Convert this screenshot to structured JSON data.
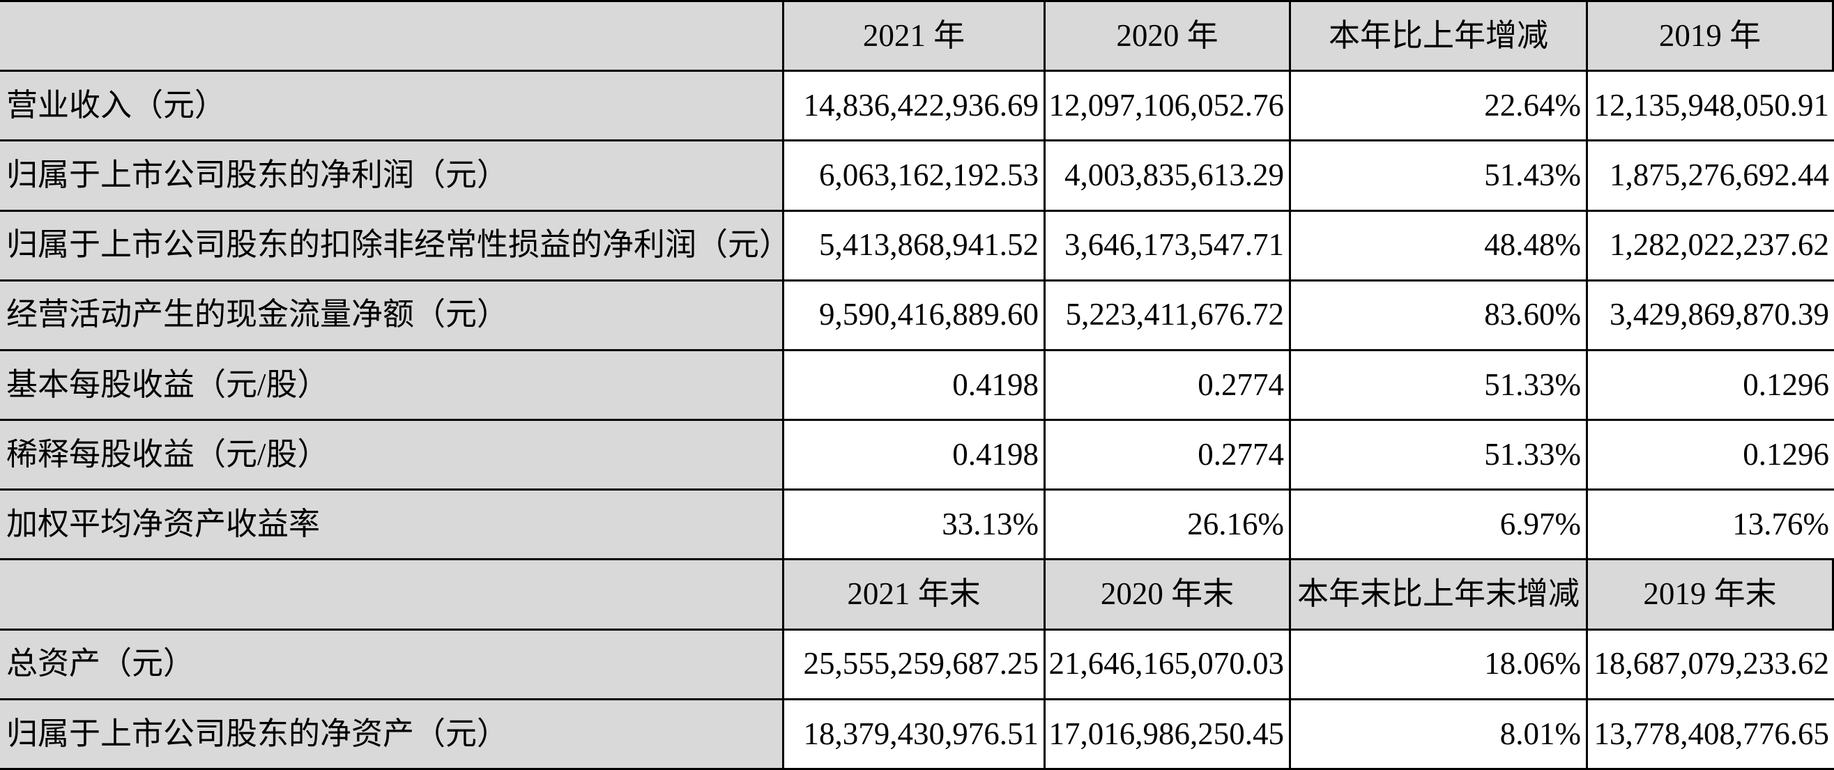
{
  "colors": {
    "header_bg": "#d9d9d9",
    "label_bg": "#d9d9d9",
    "cell_bg": "#ffffff",
    "border": "#000000",
    "text": "#000000",
    "page_bg": "#ffffff"
  },
  "table": {
    "header1": [
      "",
      "2021 年",
      "2020 年",
      "本年比上年增减",
      "2019 年"
    ],
    "rows1": [
      {
        "label": "营业收入（元）",
        "y2021": "14,836,422,936.69",
        "y2020": "12,097,106,052.76",
        "change": "22.64%",
        "y2019": "12,135,948,050.91"
      },
      {
        "label": "归属于上市公司股东的净利润（元）",
        "y2021": "6,063,162,192.53",
        "y2020": "4,003,835,613.29",
        "change": "51.43%",
        "y2019": "1,875,276,692.44"
      },
      {
        "label": "归属于上市公司股东的扣除非经常性损益的净利润（元）",
        "y2021": "5,413,868,941.52",
        "y2020": "3,646,173,547.71",
        "change": "48.48%",
        "y2019": "1,282,022,237.62"
      },
      {
        "label": "经营活动产生的现金流量净额（元）",
        "y2021": "9,590,416,889.60",
        "y2020": "5,223,411,676.72",
        "change": "83.60%",
        "y2019": "3,429,869,870.39"
      },
      {
        "label": "基本每股收益（元/股）",
        "y2021": "0.4198",
        "y2020": "0.2774",
        "change": "51.33%",
        "y2019": "0.1296"
      },
      {
        "label": "稀释每股收益（元/股）",
        "y2021": "0.4198",
        "y2020": "0.2774",
        "change": "51.33%",
        "y2019": "0.1296"
      },
      {
        "label": "加权平均净资产收益率",
        "y2021": "33.13%",
        "y2020": "26.16%",
        "change": "6.97%",
        "y2019": "13.76%"
      }
    ],
    "header2": [
      "",
      "2021 年末",
      "2020 年末",
      "本年末比上年末增减",
      "2019 年末"
    ],
    "rows2": [
      {
        "label": "总资产（元）",
        "y2021": "25,555,259,687.25",
        "y2020": "21,646,165,070.03",
        "change": "18.06%",
        "y2019": "18,687,079,233.62"
      },
      {
        "label": "归属于上市公司股东的净资产（元）",
        "y2021": "18,379,430,976.51",
        "y2020": "17,016,986,250.45",
        "change": "8.01%",
        "y2019": "13,778,408,776.65"
      }
    ]
  }
}
